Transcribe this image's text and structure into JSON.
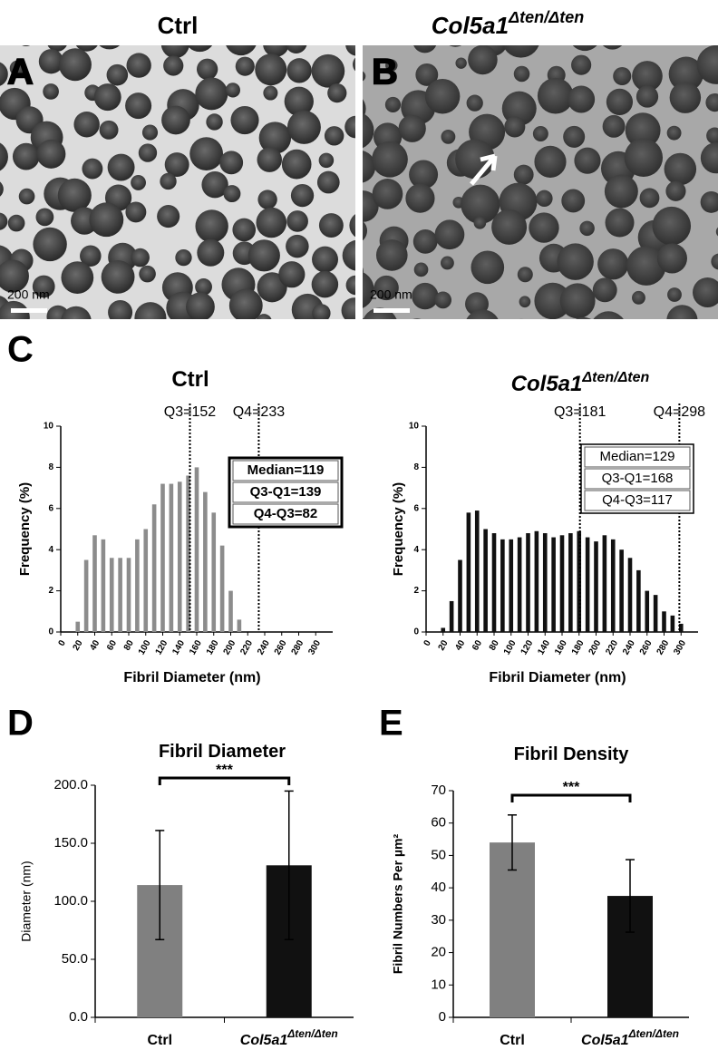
{
  "figure": {
    "panel_labels": [
      "A",
      "B",
      "C",
      "D",
      "E"
    ],
    "image_titles": [
      {
        "text": "Ctrl"
      },
      {
        "text": "Col5a1",
        "sup": "Δten/Δten"
      }
    ],
    "scale_bars": [
      "200 nm",
      "200 nm"
    ]
  },
  "chart_data": [
    {
      "type": "bar",
      "title": {
        "text": "Ctrl"
      },
      "x": [
        20,
        30,
        40,
        50,
        60,
        70,
        80,
        90,
        100,
        110,
        120,
        130,
        140,
        150,
        160,
        170,
        180,
        190,
        200,
        210
      ],
      "values": [
        0.5,
        3.5,
        4.7,
        4.5,
        3.6,
        3.6,
        3.6,
        4.5,
        5.0,
        6.2,
        7.2,
        7.2,
        7.3,
        7.6,
        8.0,
        6.8,
        5.8,
        4.2,
        2.0,
        0.6
      ],
      "color": "#8c8c8c",
      "xlim": [
        0,
        320
      ],
      "xticks": [
        0,
        20,
        40,
        60,
        80,
        100,
        120,
        140,
        160,
        180,
        200,
        220,
        240,
        260,
        280,
        300
      ],
      "ylim": [
        0,
        10
      ],
      "yticks": [
        0,
        2,
        4,
        6,
        8,
        10
      ],
      "xlabel": "Fibril Diameter (nm)",
      "ylabel": "Frequency (%)",
      "annotations": [
        {
          "value": 152,
          "label": "Q3=152"
        },
        {
          "value": 233,
          "label": "Q4=233"
        }
      ],
      "stats_box": [
        "Median=119",
        "Q3-Q1=139",
        "Q4-Q3=82"
      ]
    },
    {
      "type": "bar",
      "title": {
        "text": "Col5a1",
        "sup": "Δten/Δten"
      },
      "x": [
        20,
        30,
        40,
        50,
        60,
        70,
        80,
        90,
        100,
        110,
        120,
        130,
        140,
        150,
        160,
        170,
        180,
        190,
        200,
        210,
        220,
        230,
        240,
        250,
        260,
        270,
        280,
        290,
        300
      ],
      "values": [
        0.2,
        1.5,
        3.5,
        5.8,
        5.9,
        5.0,
        4.8,
        4.5,
        4.5,
        4.6,
        4.8,
        4.9,
        4.8,
        4.6,
        4.7,
        4.8,
        4.9,
        4.6,
        4.4,
        4.7,
        4.5,
        4.0,
        3.6,
        3.0,
        2.0,
        1.8,
        1.0,
        0.8,
        0.4
      ],
      "color": "#111111",
      "xlim": [
        0,
        320
      ],
      "xticks": [
        0,
        20,
        40,
        60,
        80,
        100,
        120,
        140,
        160,
        180,
        200,
        220,
        240,
        260,
        280,
        300
      ],
      "ylim": [
        0,
        10
      ],
      "yticks": [
        0,
        2,
        4,
        6,
        8,
        10
      ],
      "xlabel": "Fibril Diameter (nm)",
      "ylabel": "Frequency (%)",
      "annotations": [
        {
          "value": 181,
          "label": "Q3=181"
        },
        {
          "value": 298,
          "label": "Q4=298"
        }
      ],
      "stats_box": [
        "Median=129",
        "Q3-Q1=168",
        "Q4-Q3=117"
      ]
    },
    {
      "type": "bar",
      "title": {
        "text": "Fibril Diameter"
      },
      "categories": [
        {
          "text": "Ctrl"
        },
        {
          "text": "Col5a1",
          "sup": "Δten/Δten"
        }
      ],
      "values": [
        114,
        131
      ],
      "errors": [
        47,
        64
      ],
      "colors": [
        "#808080",
        "#111111"
      ],
      "ylim": [
        0,
        200
      ],
      "yticks": [
        {
          "value": 0,
          "label": "0.0"
        },
        {
          "value": 50,
          "label": "50.0"
        },
        {
          "value": 100,
          "label": "100.0"
        },
        {
          "value": 150,
          "label": "150.0"
        },
        {
          "value": 200,
          "label": "200.0"
        }
      ],
      "ylabel": "Diameter (nm)",
      "significance": "***"
    },
    {
      "type": "bar",
      "title": {
        "text": "Fibril Density"
      },
      "categories": [
        {
          "text": "Ctrl"
        },
        {
          "text": "Col5a1",
          "sup": "Δten/Δten"
        }
      ],
      "values": [
        54,
        37.5
      ],
      "errors": [
        8.5,
        11.2
      ],
      "colors": [
        "#808080",
        "#111111"
      ],
      "ylim": [
        0,
        70
      ],
      "yticks": [
        0,
        10,
        20,
        30,
        40,
        50,
        60,
        70
      ],
      "ylabel": "Fibril Numbers Per µm²",
      "significance": "***"
    }
  ]
}
